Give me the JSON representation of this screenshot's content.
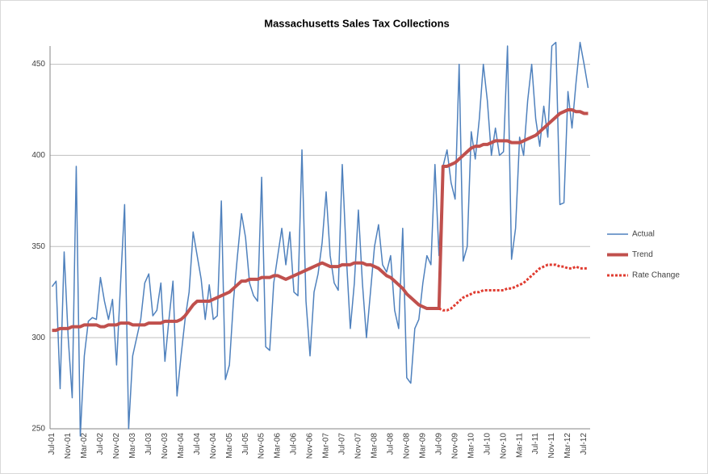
{
  "chart_data": {
    "type": "line",
    "title": "Massachusetts Sales Tax Collections",
    "categories": [
      "Jul-01",
      null,
      null,
      null,
      "Nov-01",
      null,
      null,
      null,
      "Mar-02",
      null,
      null,
      null,
      "Jul-02",
      null,
      null,
      null,
      "Nov-02",
      null,
      null,
      null,
      "Mar-03",
      null,
      null,
      null,
      "Jul-03",
      null,
      null,
      null,
      "Nov-03",
      null,
      null,
      null,
      "Mar-04",
      null,
      null,
      null,
      "Jul-04",
      null,
      null,
      null,
      "Nov-04",
      null,
      null,
      null,
      "Mar-05",
      null,
      null,
      null,
      "Jul-05",
      null,
      null,
      null,
      "Nov-05",
      null,
      null,
      null,
      "Mar-06",
      null,
      null,
      null,
      "Jul-06",
      null,
      null,
      null,
      "Nov-06",
      null,
      null,
      null,
      "Mar-07",
      null,
      null,
      null,
      "Jul-07",
      null,
      null,
      null,
      "Nov-07",
      null,
      null,
      null,
      "Mar-08",
      null,
      null,
      null,
      "Jul-08",
      null,
      null,
      null,
      "Nov-08",
      null,
      null,
      null,
      "Mar-09",
      null,
      null,
      null,
      "Jul-09",
      null,
      null,
      null,
      "Nov-09",
      null,
      null,
      null,
      "Mar-10",
      null,
      null,
      null,
      "Jul-10",
      null,
      null,
      null,
      "Nov-10",
      null,
      null,
      null,
      "Mar-11",
      null,
      null,
      null,
      "Jul-11",
      null,
      null,
      null,
      "Nov-11",
      null,
      null,
      null,
      "Mar-12",
      null,
      null,
      null,
      "Jul-12",
      null
    ],
    "series": [
      {
        "name": "Actual",
        "color": "#4f81bd",
        "width": 1.5,
        "dash": "solid",
        "values": [
          328,
          331,
          272,
          347,
          300,
          267,
          394,
          246,
          290,
          309,
          311,
          310,
          333,
          320,
          310,
          321,
          285,
          330,
          373,
          250,
          290,
          300,
          310,
          330,
          335,
          312,
          315,
          330,
          287,
          310,
          331,
          268,
          290,
          310,
          325,
          358,
          345,
          332,
          310,
          329,
          310,
          312,
          375,
          277,
          285,
          320,
          345,
          368,
          355,
          330,
          323,
          320,
          388,
          295,
          293,
          330,
          345,
          360,
          340,
          358,
          325,
          323,
          403,
          320,
          290,
          325,
          335,
          352,
          380,
          345,
          330,
          326,
          395,
          345,
          305,
          330,
          370,
          330,
          300,
          325,
          350,
          362,
          340,
          336,
          345,
          315,
          305,
          360,
          278,
          275,
          305,
          310,
          330,
          345,
          340,
          395,
          345,
          394,
          403,
          385,
          376,
          450,
          342,
          350,
          413,
          398,
          420,
          450,
          430,
          400,
          415,
          400,
          402,
          460,
          343,
          360,
          410,
          400,
          430,
          450,
          420,
          405,
          427,
          410,
          460,
          462,
          373,
          374,
          435,
          415,
          440,
          462,
          450,
          437
        ]
      },
      {
        "name": "Trend",
        "color": "#c0504d",
        "width": 4,
        "dash": "solid",
        "values": [
          304,
          304,
          305,
          305,
          305,
          306,
          306,
          306,
          307,
          307,
          307,
          307,
          306,
          306,
          307,
          307,
          307,
          308,
          308,
          308,
          307,
          307,
          307,
          307,
          308,
          308,
          308,
          308,
          309,
          309,
          309,
          309,
          310,
          312,
          315,
          318,
          320,
          320,
          320,
          320,
          321,
          322,
          323,
          324,
          325,
          327,
          329,
          331,
          331,
          332,
          332,
          332,
          333,
          333,
          333,
          334,
          334,
          333,
          332,
          333,
          334,
          335,
          336,
          337,
          338,
          339,
          340,
          341,
          340,
          339,
          339,
          339,
          340,
          340,
          340,
          341,
          341,
          341,
          340,
          340,
          339,
          338,
          336,
          334,
          333,
          331,
          329,
          327,
          324,
          322,
          320,
          318,
          317,
          316,
          316,
          316,
          316,
          394,
          394,
          395,
          396,
          398,
          400,
          402,
          404,
          405,
          405,
          406,
          406,
          407,
          408,
          408,
          408,
          408,
          407,
          407,
          407,
          408,
          409,
          410,
          411,
          413,
          415,
          417,
          419,
          421,
          423,
          424,
          425,
          425,
          424,
          424,
          423,
          423
        ]
      },
      {
        "name": "Rate Change",
        "color": "#e03c31",
        "width": 3,
        "dash": "dotted",
        "values": [
          null,
          null,
          null,
          null,
          null,
          null,
          null,
          null,
          null,
          null,
          null,
          null,
          null,
          null,
          null,
          null,
          null,
          null,
          null,
          null,
          null,
          null,
          null,
          null,
          null,
          null,
          null,
          null,
          null,
          null,
          null,
          null,
          null,
          null,
          null,
          null,
          null,
          null,
          null,
          null,
          null,
          null,
          null,
          null,
          null,
          null,
          null,
          null,
          null,
          null,
          null,
          null,
          null,
          null,
          null,
          null,
          null,
          null,
          null,
          null,
          null,
          null,
          null,
          null,
          null,
          null,
          null,
          null,
          null,
          null,
          null,
          null,
          null,
          null,
          null,
          null,
          null,
          null,
          null,
          null,
          null,
          null,
          null,
          null,
          null,
          null,
          null,
          null,
          null,
          null,
          null,
          null,
          null,
          null,
          null,
          null,
          316,
          315,
          315,
          316,
          318,
          320,
          322,
          323,
          324,
          325,
          325,
          326,
          326,
          326,
          326,
          326,
          326,
          327,
          327,
          328,
          329,
          330,
          332,
          334,
          336,
          338,
          339,
          340,
          340,
          340,
          339,
          339,
          338,
          338,
          339,
          338,
          338,
          338
        ]
      }
    ],
    "ylim": [
      250,
      460
    ],
    "yticks": [
      250,
      300,
      350,
      400,
      450
    ],
    "grid": true,
    "legend": "right"
  }
}
